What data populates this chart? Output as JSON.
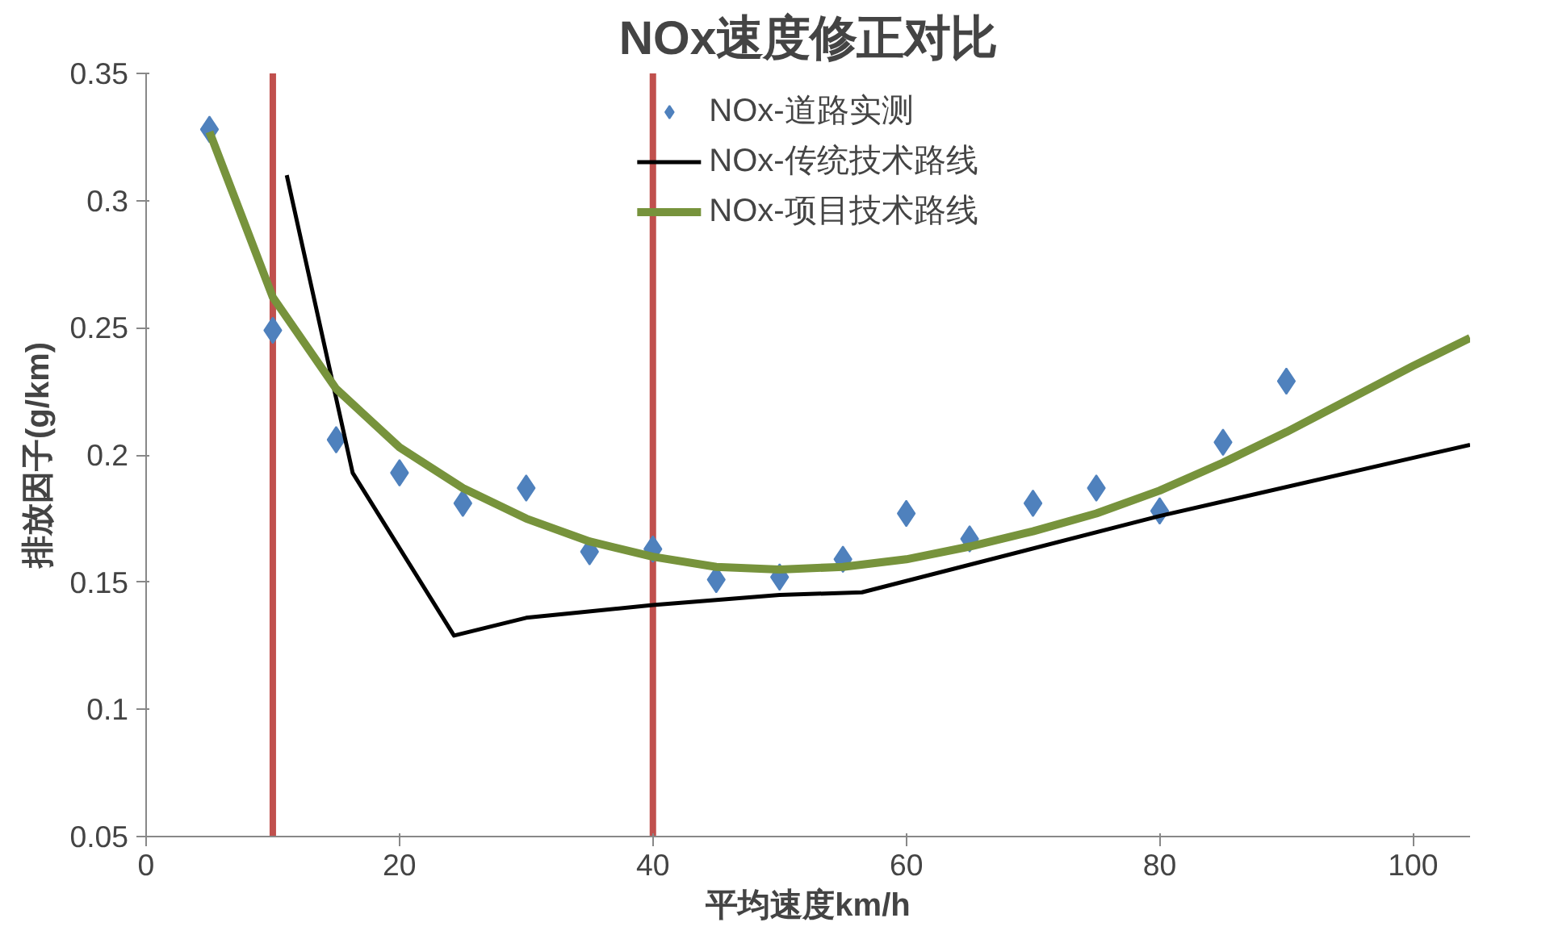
{
  "chart_data": {
    "type": "scatter",
    "title": "NOx速度修正对比",
    "xlabel": "平均速度km/h",
    "ylabel": "排放因子(g/km)",
    "xlim": [
      0,
      104.5
    ],
    "ylim": [
      0.05,
      0.35
    ],
    "xticks": [
      0,
      20,
      40,
      60,
      80,
      100
    ],
    "yticks": [
      0.05,
      0.1,
      0.15,
      0.2,
      0.25,
      0.3,
      0.35
    ],
    "grid": false,
    "legend": "top",
    "series": [
      {
        "name": "NOx-道路实测",
        "marker": "diamond",
        "color": "#4f81bd",
        "x": [
          5,
          10,
          15,
          20,
          25,
          30,
          35,
          40,
          45,
          50,
          55,
          60,
          65,
          70,
          75,
          80,
          85,
          90
        ],
        "values": [
          0.328,
          0.249,
          0.206,
          0.193,
          0.181,
          0.187,
          0.162,
          0.163,
          0.151,
          0.152,
          0.159,
          0.177,
          0.167,
          0.181,
          0.187,
          0.178,
          0.205,
          0.229
        ]
      },
      {
        "name": "NOx-传统技术路线",
        "type": "line",
        "color": "#000000",
        "x": [
          11.1,
          16.3,
          24.3,
          30,
          40,
          50,
          56.5,
          80,
          104.5
        ],
        "values": [
          0.31,
          0.193,
          0.129,
          0.136,
          0.141,
          0.145,
          0.146,
          0.176,
          0.204
        ]
      },
      {
        "name": "NOx-项目技术路线",
        "type": "line",
        "color": "#77933c",
        "x": [
          5,
          10,
          15,
          20,
          25,
          30,
          35,
          40,
          45,
          50,
          55,
          60,
          65,
          70,
          75,
          80,
          85,
          90,
          95,
          100,
          104.5
        ],
        "values": [
          0.327,
          0.262,
          0.226,
          0.203,
          0.187,
          0.175,
          0.166,
          0.16,
          0.156,
          0.155,
          0.156,
          0.159,
          0.164,
          0.17,
          0.177,
          0.186,
          0.197,
          0.209,
          0.222,
          0.235,
          0.246
        ]
      }
    ],
    "ref_lines": [
      {
        "axis": "x",
        "value": 10,
        "color": "#c0504d"
      },
      {
        "axis": "x",
        "value": 40,
        "color": "#c0504d"
      }
    ]
  }
}
